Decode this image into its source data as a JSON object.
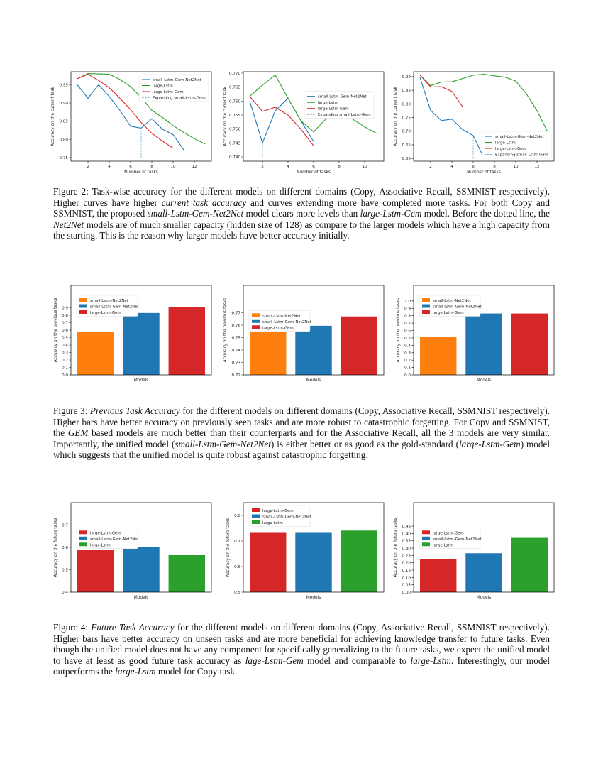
{
  "colors": {
    "blue": "#1f77b4",
    "orange": "#ff7f0e",
    "green": "#2ca02c",
    "red": "#d62728",
    "expand": "#6aaed6"
  },
  "chart_data": [
    {
      "type": "line",
      "figure": "Figure 2",
      "xlabel": "Number of tasks",
      "ylabel": "Accuracy on the current task",
      "xlim": [
        0.4,
        13.6
      ],
      "ylim": [
        0.74,
        0.986
      ],
      "xticks": [
        "2",
        "4",
        "6",
        "8",
        "10",
        "12"
      ],
      "yticks": [
        "0.75",
        "0.80",
        "0.85",
        "0.90",
        "0.95"
      ],
      "legend": "upper right",
      "grid": false,
      "series": [
        {
          "name": "small-Lstm-Gem-Net2Net",
          "color": "#1f77b4",
          "style": "solid",
          "x": [
            1,
            2,
            3,
            4,
            5,
            6,
            7,
            8,
            9,
            10,
            11
          ],
          "y": [
            0.95,
            0.913,
            0.95,
            0.918,
            0.88,
            0.836,
            0.831,
            0.857,
            0.828,
            0.813,
            0.771
          ]
        },
        {
          "name": "large-Lstm",
          "color": "#2ca02c",
          "style": "solid",
          "x": [
            1,
            2,
            3,
            4,
            5,
            6,
            7,
            8,
            9,
            10,
            11,
            12,
            13
          ],
          "y": [
            0.967,
            0.981,
            0.98,
            0.979,
            0.965,
            0.945,
            0.915,
            0.88,
            0.86,
            0.838,
            0.819,
            0.802,
            0.787
          ]
        },
        {
          "name": "large-Lstm-Gem",
          "color": "#d62728",
          "style": "solid",
          "x": [
            1,
            2,
            3,
            4,
            5,
            6,
            7,
            8,
            9,
            10
          ],
          "y": [
            0.967,
            0.979,
            0.962,
            0.942,
            0.913,
            0.882,
            0.846,
            0.817,
            0.795,
            0.776
          ]
        },
        {
          "name": "Expanding small-Lstm-Gem",
          "color": "#6aaed6",
          "style": "dashed",
          "x": [
            7,
            7
          ],
          "y": [
            0.75,
            0.831
          ]
        }
      ]
    },
    {
      "type": "line",
      "figure": "Figure 2",
      "xlabel": "Number of tasks",
      "ylabel": "Accuracy on the current task",
      "xlim": [
        0.5,
        11.5
      ],
      "ylim": [
        0.7385,
        0.7705
      ],
      "xticks": [
        "2",
        "4",
        "6",
        "8",
        "10"
      ],
      "yticks": [
        "0.740",
        "0.745",
        "0.750",
        "0.755",
        "0.760",
        "0.765",
        "0.770"
      ],
      "legend": "center right",
      "grid": false,
      "series": [
        {
          "name": "small-Lstm-Gem-Net2Net",
          "color": "#1f77b4",
          "style": "solid",
          "x": [
            1,
            2,
            3,
            4,
            5,
            6
          ],
          "y": [
            0.76,
            0.745,
            0.7565,
            0.761,
            0.753,
            0.7455
          ]
        },
        {
          "name": "large-Lstm",
          "color": "#2ca02c",
          "style": "solid",
          "x": [
            1,
            2,
            3,
            4,
            5,
            6,
            7,
            8,
            9,
            10,
            11
          ],
          "y": [
            0.7617,
            0.7657,
            0.7693,
            0.761,
            0.753,
            0.749,
            0.7538,
            0.7556,
            0.7537,
            0.7508,
            0.7483
          ]
        },
        {
          "name": "large-Lstm-Gem",
          "color": "#d62728",
          "style": "solid",
          "x": [
            1,
            2,
            3,
            4,
            5,
            6
          ],
          "y": [
            0.7617,
            0.7563,
            0.7578,
            0.755,
            0.75,
            0.744
          ]
        },
        {
          "name": "Expanding small-Lstm-Gem",
          "color": "#6aaed6",
          "style": "dashed",
          "x": [
            2,
            2
          ],
          "y": [
            0.74,
            0.745
          ]
        }
      ]
    },
    {
      "type": "line",
      "figure": "Figure 2",
      "xlabel": "Number of tasks",
      "ylabel": "Accuracy on the current task",
      "xlim": [
        0.4,
        13.6
      ],
      "ylim": [
        0.59,
        0.918
      ],
      "xticks": [
        "2",
        "4",
        "6",
        "8",
        "10",
        "12"
      ],
      "yticks": [
        "0.60",
        "0.65",
        "0.70",
        "0.75",
        "0.80",
        "0.85",
        "0.90"
      ],
      "legend": "lower right",
      "grid": false,
      "series": [
        {
          "name": "small-Lstm-Gem-Net2Net",
          "color": "#1f77b4",
          "style": "solid",
          "x": [
            1,
            2,
            3,
            4,
            5,
            6,
            7
          ],
          "y": [
            0.897,
            0.776,
            0.739,
            0.744,
            0.706,
            0.684,
            0.602
          ]
        },
        {
          "name": "large-Lstm",
          "color": "#2ca02c",
          "style": "solid",
          "x": [
            1,
            2,
            3,
            4,
            5,
            6,
            7,
            8,
            9,
            10,
            11,
            12,
            13
          ],
          "y": [
            0.906,
            0.867,
            0.88,
            0.881,
            0.893,
            0.905,
            0.909,
            0.903,
            0.898,
            0.884,
            0.837,
            0.775,
            0.697
          ]
        },
        {
          "name": "large-Lstm-Gem",
          "color": "#d62728",
          "style": "solid",
          "x": [
            1,
            2,
            3,
            4,
            5
          ],
          "y": [
            0.906,
            0.862,
            0.863,
            0.846,
            0.79
          ]
        },
        {
          "name": "Expanding small-Lstm-Gem",
          "color": "#6aaed6",
          "style": "dashed",
          "x": [
            6,
            6
          ],
          "y": [
            0.6,
            0.684
          ]
        }
      ]
    },
    {
      "type": "bar",
      "figure": "Figure 3",
      "xlabel": "Models",
      "ylabel": "Accuracy on the previous tasks",
      "ylim": [
        0,
        1.2
      ],
      "yticks": [
        "0.0",
        "0.1",
        "0.2",
        "0.3",
        "0.4",
        "0.5",
        "0.6",
        "0.7",
        "0.8",
        "0.9"
      ],
      "legend": "upper left",
      "grid": false,
      "series": [
        {
          "name": "small-Lstm-Net2Net",
          "color": "#ff7f0e",
          "value": 0.58
        },
        {
          "name": "small-Lstm-Gem-Net2Net",
          "color": "#1f77b4",
          "value": 0.83
        },
        {
          "name": "large-Lstm-Gem",
          "color": "#d62728",
          "value": 0.91
        }
      ]
    },
    {
      "type": "bar",
      "figure": "Figure 3",
      "xlabel": "Models",
      "ylabel": "Accuracy on the previous tasks",
      "ylim": [
        0.72,
        0.792
      ],
      "yticks": [
        "0.72",
        "0.73",
        "0.74",
        "0.75",
        "0.76",
        "0.77"
      ],
      "legend": "center left",
      "grid": false,
      "series": [
        {
          "name": "small-Lstm-Net2Net",
          "color": "#ff7f0e",
          "value": 0.758
        },
        {
          "name": "small-Lstm-Gem-Net2Net",
          "color": "#1f77b4",
          "value": 0.7595
        },
        {
          "name": "large-Lstm-Gem",
          "color": "#d62728",
          "value": 0.767
        }
      ]
    },
    {
      "type": "bar",
      "figure": "Figure 3",
      "xlabel": "Models",
      "ylabel": "Accuracy on the previous tasks",
      "ylim": [
        0,
        1.21
      ],
      "yticks": [
        "0.0",
        "0.1",
        "0.2",
        "0.3",
        "0.4",
        "0.5",
        "0.6",
        "0.7",
        "0.8",
        "0.9",
        "1.0"
      ],
      "legend": "upper left",
      "grid": false,
      "series": [
        {
          "name": "small-Lstm-Net2Net",
          "color": "#ff7f0e",
          "value": 0.51
        },
        {
          "name": "small-Lstm-Gem-Net2Net",
          "color": "#1f77b4",
          "value": 0.83
        },
        {
          "name": "large-Lstm-Gem",
          "color": "#d62728",
          "value": 0.83
        }
      ]
    },
    {
      "type": "bar",
      "figure": "Figure 4",
      "xlabel": "Models",
      "ylabel": "Accuracy on the future tasks",
      "ylim": [
        0.4,
        0.8
      ],
      "yticks": [
        "0.4",
        "0.5",
        "0.6",
        "0.7"
      ],
      "legend": "center left",
      "grid": false,
      "series": [
        {
          "name": "large-Lstm-Gem",
          "color": "#d62728",
          "value": 0.59
        },
        {
          "name": "small-Lstm-Gem-Net2Net",
          "color": "#1f77b4",
          "value": 0.6
        },
        {
          "name": "large-Lstm",
          "color": "#2ca02c",
          "value": 0.566
        }
      ]
    },
    {
      "type": "bar",
      "figure": "Figure 4",
      "xlabel": "Models",
      "ylabel": "Accuracy on the future tasks",
      "ylim": [
        0.5,
        0.85
      ],
      "yticks": [
        "0.5",
        "0.6",
        "0.7",
        "0.8"
      ],
      "legend": "upper left",
      "grid": false,
      "series": [
        {
          "name": "large-Lstm-Gem",
          "color": "#d62728",
          "value": 0.732
        },
        {
          "name": "small-Lstm-Gem-Net2Net",
          "color": "#1f77b4",
          "value": 0.732
        },
        {
          "name": "large-Lstm",
          "color": "#2ca02c",
          "value": 0.741
        }
      ]
    },
    {
      "type": "bar",
      "figure": "Figure 4",
      "xlabel": "Models",
      "ylabel": "Accuracy on the future tasks",
      "ylim": [
        0,
        0.61
      ],
      "yticks": [
        "0.00",
        "0.05",
        "0.10",
        "0.15",
        "0.20",
        "0.25",
        "0.30",
        "0.35",
        "0.40",
        "0.45"
      ],
      "legend": "center left",
      "grid": false,
      "series": [
        {
          "name": "large-Lstm-Gem",
          "color": "#d62728",
          "value": 0.226
        },
        {
          "name": "small-Lstm-Gem-Net2Net",
          "color": "#1f77b4",
          "value": 0.265
        },
        {
          "name": "large-Lstm",
          "color": "#2ca02c",
          "value": 0.37
        }
      ]
    }
  ],
  "captions": [
    [
      {
        "t": "Figure 2: Task-wise accuracy for the different models on different domains (Copy, Associative Recall, SSMNIST respectively). Higher curves have higher "
      },
      {
        "t": "current task accuracy",
        "i": true
      },
      {
        "t": " and curves extending more have completed more tasks. For both Copy and SSMNIST, the proposed "
      },
      {
        "t": "small-Lstm-Gem-Net2Net",
        "i": true
      },
      {
        "t": " model clears more levels than "
      },
      {
        "t": "large-Lstm-Gem",
        "i": true
      },
      {
        "t": " model. Before the dotted line, the "
      },
      {
        "t": "Net2Net",
        "i": true
      },
      {
        "t": " models are of much smaller capacity (hidden size of 128) as compare to the larger models which have a high capacity from the starting. This is the reason why larger models have better accuracy initially."
      }
    ],
    [
      {
        "t": "Figure 3: "
      },
      {
        "t": "Previous Task Accuracy",
        "i": true
      },
      {
        "t": " for the different models on different domains (Copy, Associative Recall, SSMNIST respectively). Higher bars have better accuracy on previously seen tasks and are more robust to catastrophic forgetting. For Copy and SSMNIST, the "
      },
      {
        "t": "GEM",
        "i": true
      },
      {
        "t": " based models are much better than their counterparts and for the Associative Recall, all the 3 models are very similar. Importantly, the unified model ("
      },
      {
        "t": "small-Lstm-Gem-Net2Net",
        "i": true
      },
      {
        "t": ") is either better or as good as the gold-standard ("
      },
      {
        "t": "large-Lstm-Gem",
        "i": true
      },
      {
        "t": ") model which suggests that the unified model is quite robust against catastrophic forgetting."
      }
    ],
    [
      {
        "t": "Figure 4: "
      },
      {
        "t": "Future Task Accuracy",
        "i": true
      },
      {
        "t": " for the different models on different domains (Copy, Associative Recall, SSMNIST respectively). Higher bars have better accuracy on unseen tasks and are more beneficial for achieving knowledge transfer to future tasks. Even though the unified model does not have any component for specifically generalizing to the future tasks, we expect the unified model to have at least as good future task accuracy as "
      },
      {
        "t": "lage-Lstm-Gem",
        "i": true
      },
      {
        "t": " model and comparable to "
      },
      {
        "t": "large-Lstm",
        "i": true
      },
      {
        "t": ". Interestingly, our model outperforms the "
      },
      {
        "t": "large-Lstm",
        "i": true
      },
      {
        "t": " model for Copy task."
      }
    ]
  ]
}
